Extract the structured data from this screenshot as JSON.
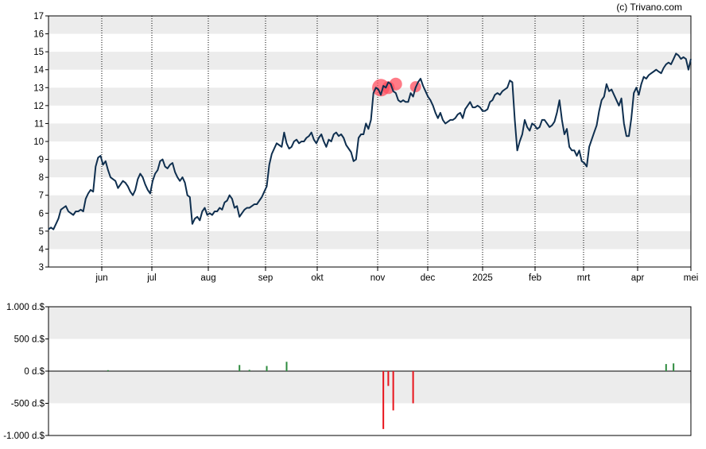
{
  "credit": "(c) Trivano.com",
  "colors": {
    "price_line": "#0f2f4f",
    "band": "#ececec",
    "buy": "#2e8b3e",
    "sell": "#e8141c",
    "marker_fill": "#ff4f5f"
  },
  "chart_data": [
    {
      "type": "line",
      "ylim": [
        3,
        17
      ],
      "y_ticks": [
        "3",
        "4",
        "5",
        "6",
        "7",
        "8",
        "9",
        "10",
        "11",
        "12",
        "13",
        "14",
        "15",
        "16",
        "17"
      ],
      "x_ticks": [
        "jun",
        "jul",
        "aug",
        "sep",
        "okt",
        "nov",
        "dec",
        "2025",
        "feb",
        "mrt",
        "apr",
        "mei"
      ],
      "grid": "horizontal bands, dotted vertical month lines",
      "series": [
        {
          "values": [
            5.1,
            5.2,
            5.1,
            5.4,
            5.7,
            6.2,
            6.3,
            6.4,
            6.1,
            6.0,
            5.9,
            6.1,
            6.1,
            6.2,
            6.1,
            6.8,
            7.1,
            7.3,
            7.2,
            8.6,
            9.1,
            9.2,
            8.7,
            8.9,
            8.4,
            8.0,
            7.9,
            7.8,
            7.4,
            7.6,
            7.8,
            7.7,
            7.5,
            7.2,
            7.0,
            7.3,
            7.9,
            8.2,
            8.0,
            7.6,
            7.3,
            7.1,
            7.8,
            8.2,
            8.4,
            8.9,
            9.0,
            8.6,
            8.5,
            8.7,
            8.8,
            8.3,
            8.0,
            7.8,
            8.0,
            7.7,
            7.0,
            6.9,
            5.4,
            5.7,
            5.8,
            5.6,
            6.1,
            6.3,
            5.9,
            6.0,
            5.9,
            6.1,
            6.1,
            6.3,
            6.2,
            6.6,
            6.7,
            7.0,
            6.8,
            6.3,
            6.4,
            5.8,
            6.0,
            6.2,
            6.3,
            6.3,
            6.4,
            6.5,
            6.5,
            6.7,
            6.9,
            7.2,
            7.5,
            8.7,
            9.3,
            9.6,
            9.9,
            9.8,
            9.7,
            10.5,
            9.9,
            9.6,
            9.7,
            10.0,
            10.1,
            9.9,
            10.0,
            10.0,
            10.2,
            10.3,
            10.5,
            10.1,
            9.9,
            10.2,
            10.4,
            10.0,
            9.7,
            10.1,
            10.0,
            10.4,
            10.5,
            10.3,
            10.4,
            10.2,
            9.8,
            9.6,
            9.4,
            8.9,
            9.0,
            10.2,
            10.4,
            10.4,
            11.0,
            10.7,
            11.2,
            12.7,
            13.0,
            12.9,
            12.6,
            13.1,
            13.0,
            13.3,
            13.2,
            12.8,
            12.7,
            12.3,
            12.2,
            12.3,
            12.2,
            12.2,
            12.7,
            12.5,
            13.0,
            13.3,
            13.5,
            13.1,
            12.8,
            12.5,
            12.3,
            12.0,
            11.6,
            11.3,
            11.6,
            11.2,
            11.0,
            11.1,
            11.2,
            11.2,
            11.3,
            11.5,
            11.6,
            11.3,
            11.8,
            12.0,
            12.2,
            11.9,
            11.9,
            12.0,
            11.9,
            11.7,
            11.7,
            11.8,
            12.2,
            12.3,
            12.6,
            12.7,
            12.6,
            12.8,
            12.9,
            13.0,
            13.4,
            13.3,
            11.2,
            9.5,
            10.0,
            10.4,
            11.2,
            10.8,
            10.6,
            11.0,
            10.9,
            10.7,
            10.8,
            11.2,
            11.2,
            11.0,
            10.8,
            10.9,
            11.1,
            11.6,
            12.3,
            11.2,
            10.4,
            10.7,
            9.7,
            9.5,
            9.5,
            9.2,
            9.5,
            8.9,
            8.8,
            8.6,
            9.7,
            10.1,
            10.5,
            10.9,
            11.7,
            12.3,
            12.5,
            13.2,
            12.8,
            12.9,
            12.6,
            12.3,
            12.0,
            12.4,
            11.0,
            10.3,
            10.3,
            11.3,
            12.7,
            13.0,
            12.6,
            13.2,
            13.6,
            13.5,
            13.7,
            13.8,
            13.9,
            14.0,
            13.9,
            13.8,
            14.1,
            14.3,
            14.4,
            14.3,
            14.6,
            14.9,
            14.8,
            14.6,
            14.7,
            14.6,
            14.0,
            14.6
          ]
        }
      ],
      "transaction_markers": [
        {
          "index": 134,
          "y": 13.0,
          "size": "large"
        },
        {
          "index": 137,
          "y": 13.0,
          "size": "medium"
        },
        {
          "index": 140,
          "y": 13.2,
          "size": "medium"
        },
        {
          "index": 148,
          "y": 13.05,
          "size": "small"
        }
      ]
    },
    {
      "type": "bar",
      "ylim": [
        -1000,
        1000
      ],
      "y_ticks": [
        "1.000 d.$",
        "500 d.$",
        "0 d.$",
        "-500 d.$",
        "-1.000 d.$"
      ],
      "y_tick_values": [
        1000,
        500,
        0,
        -500,
        -1000
      ],
      "grid": "horizontal bands",
      "series": [
        {
          "name": "buy",
          "points": [
            {
              "x": 24,
              "value": 15
            },
            {
              "x": 77,
              "value": 95
            },
            {
              "x": 81,
              "value": 20
            },
            {
              "x": 88,
              "value": 80
            },
            {
              "x": 96,
              "value": 145
            },
            {
              "x": 249,
              "value": 110
            },
            {
              "x": 252,
              "value": 120
            }
          ]
        },
        {
          "name": "sell",
          "points": [
            {
              "x": 135,
              "value": -900
            },
            {
              "x": 137,
              "value": -230
            },
            {
              "x": 139,
              "value": -610
            },
            {
              "x": 147,
              "value": -500
            }
          ]
        }
      ]
    }
  ]
}
